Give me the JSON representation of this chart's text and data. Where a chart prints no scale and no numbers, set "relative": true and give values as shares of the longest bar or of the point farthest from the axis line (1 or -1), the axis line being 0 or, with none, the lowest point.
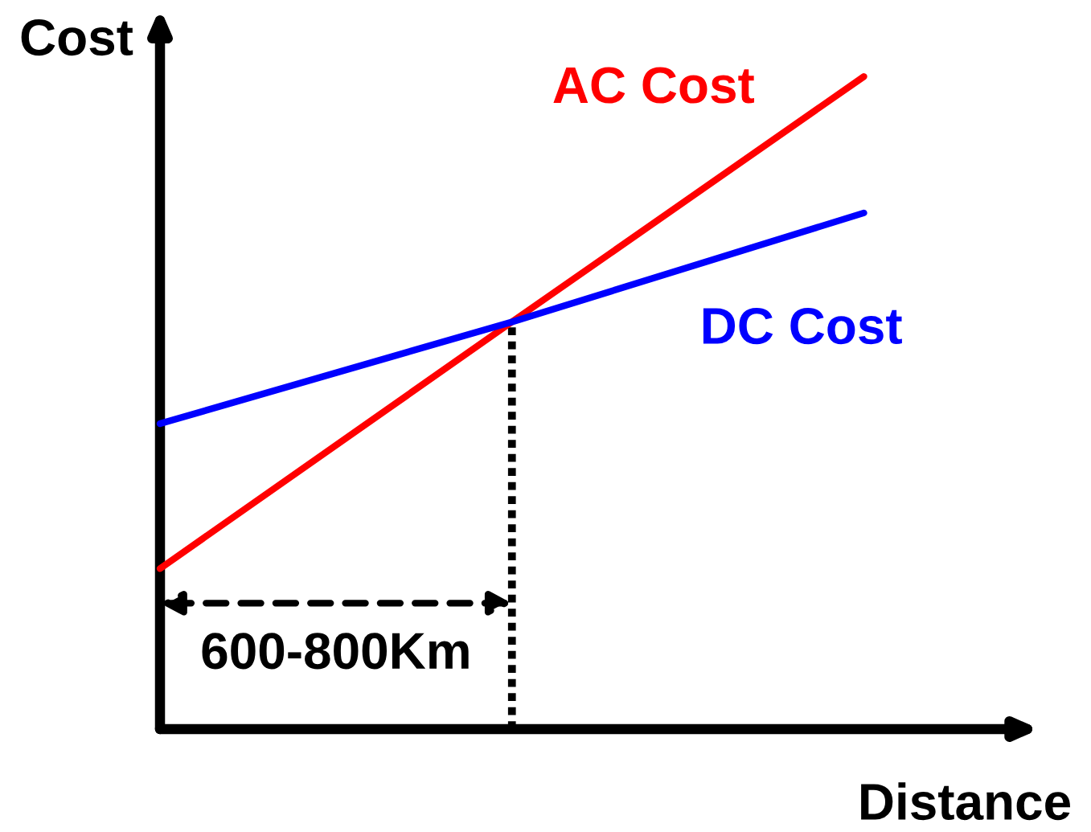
{
  "chart_data": {
    "type": "line",
    "relative": true,
    "xlabel": "Distance",
    "ylabel": "Cost",
    "legend": false,
    "marker": "none",
    "line_style": "solid",
    "categories": [
      null,
      null,
      null
    ],
    "series": [
      {
        "name": "AC Cost",
        "color": "#ff0000",
        "values": [
          0.246,
          0.624,
          1.0
        ]
      },
      {
        "name": "DC Cost",
        "color": "#0000ff",
        "values": [
          0.468,
          0.624,
          0.791
        ]
      }
    ],
    "annotations": [
      "600-800Km"
    ]
  }
}
